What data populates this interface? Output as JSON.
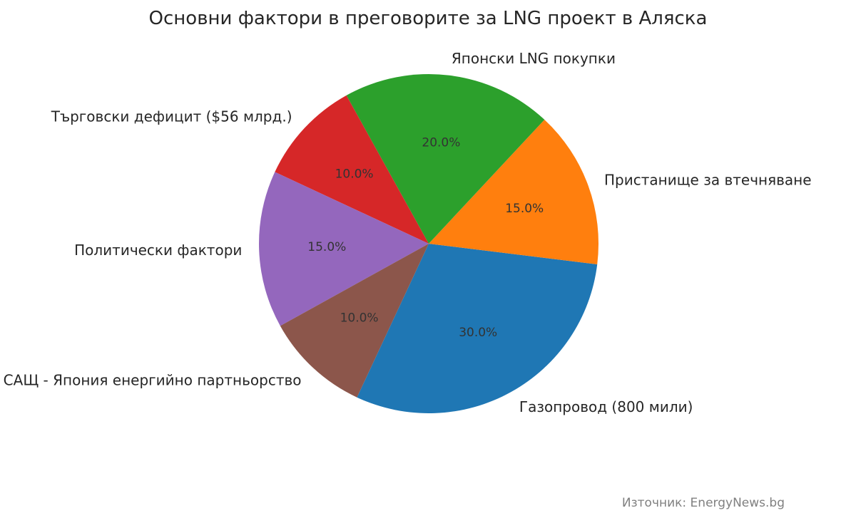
{
  "chart_data": {
    "type": "pie",
    "title": "Основни фактори в преговорите за LNG проект в Аляска",
    "start_angle_deg": 245,
    "direction": "counterclockwise",
    "slices": [
      {
        "label": "Газопровод (800 мили)",
        "value": 30.0,
        "pct_label": "30.0%",
        "color": "#1f77b4"
      },
      {
        "label": "Пристанище за втечняване",
        "value": 15.0,
        "pct_label": "15.0%",
        "color": "#ff7f0e"
      },
      {
        "label": "Японски LNG покупки",
        "value": 20.0,
        "pct_label": "20.0%",
        "color": "#2ca02c"
      },
      {
        "label": "Търговски дефицит ($56 млрд.)",
        "value": 10.0,
        "pct_label": "10.0%",
        "color": "#d62728"
      },
      {
        "label": "Политически фактори",
        "value": 15.0,
        "pct_label": "15.0%",
        "color": "#9467bd"
      },
      {
        "label": "САЩ - Япония енергийно партньорство",
        "value": 10.0,
        "pct_label": "10.0%",
        "color": "#8c564b"
      }
    ]
  },
  "source_note": "Източник: EnergyNews.bg"
}
